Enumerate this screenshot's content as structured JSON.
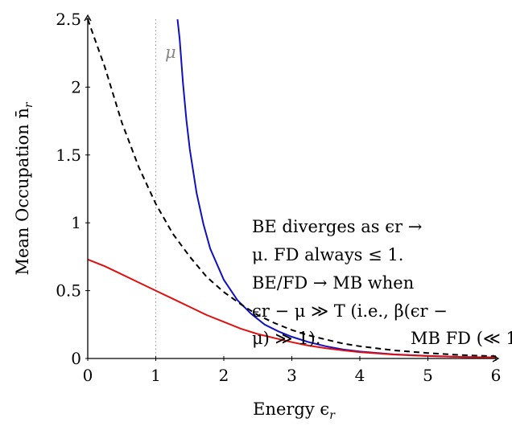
{
  "chart_data": {
    "type": "line",
    "xlabel": "Energy ϵ",
    "xlabel_sub": "r",
    "ylabel": "Mean Occupation n̄",
    "ylabel_sub": "r",
    "xlim": [
      0,
      6
    ],
    "ylim": [
      0,
      2.5
    ],
    "x_ticks": [
      "0",
      "1",
      "2",
      "3",
      "4",
      "5",
      "6"
    ],
    "y_ticks": [
      "0",
      "0.5",
      "1",
      "1.5",
      "2",
      "2.5"
    ],
    "grid": false,
    "mu": 1,
    "mu_label": "μ",
    "series": [
      {
        "style": "solid",
        "color": "#1010c0",
        "x": [
          1.32,
          1.35,
          1.4,
          1.45,
          1.5,
          1.6,
          1.7,
          1.8,
          2.0,
          2.2,
          2.4,
          2.6,
          2.8,
          3.0,
          3.25,
          3.5,
          3.75,
          4.0,
          4.5,
          5.0,
          5.5,
          6.0
        ],
        "y": [
          2.5,
          2.36,
          2.03,
          1.76,
          1.54,
          1.22,
          0.99,
          0.81,
          0.58,
          0.43,
          0.33,
          0.25,
          0.2,
          0.16,
          0.12,
          0.09,
          0.067,
          0.051,
          0.03,
          0.019,
          0.011,
          0.007
        ]
      },
      {
        "style": "dashed",
        "color": "#000000",
        "x": [
          0.0,
          0.25,
          0.5,
          0.75,
          1.0,
          1.25,
          1.5,
          1.75,
          2.0,
          2.25,
          2.5,
          2.75,
          3.0,
          3.25,
          3.5,
          3.75,
          4.0,
          4.5,
          5.0,
          5.5,
          6.0
        ],
        "y": [
          2.5,
          2.15,
          1.74,
          1.41,
          1.14,
          0.92,
          0.75,
          0.6,
          0.49,
          0.4,
          0.32,
          0.26,
          0.21,
          0.17,
          0.14,
          0.11,
          0.09,
          0.06,
          0.04,
          0.025,
          0.016
        ]
      },
      {
        "style": "solid",
        "color": "#e01010",
        "x": [
          0.0,
          0.25,
          0.5,
          0.75,
          1.0,
          1.25,
          1.5,
          1.75,
          2.0,
          2.25,
          2.5,
          2.75,
          3.0,
          3.25,
          3.5,
          3.75,
          4.0,
          4.5,
          5.0,
          5.5,
          6.0
        ],
        "y": [
          0.73,
          0.68,
          0.62,
          0.56,
          0.5,
          0.44,
          0.38,
          0.32,
          0.27,
          0.22,
          0.18,
          0.15,
          0.12,
          0.095,
          0.076,
          0.06,
          0.047,
          0.029,
          0.018,
          0.011,
          0.007
        ]
      }
    ],
    "annotation": {
      "lines": [
        "BE diverges as ϵr →",
        "μ. FD always ≤ 1.",
        "BE/FD → MB when",
        "ϵr − μ ≫ T (i.e., β(ϵr −",
        "μ) ≫ 1)."
      ],
      "legend_fragment": "MB FD (≪ 1"
    }
  }
}
